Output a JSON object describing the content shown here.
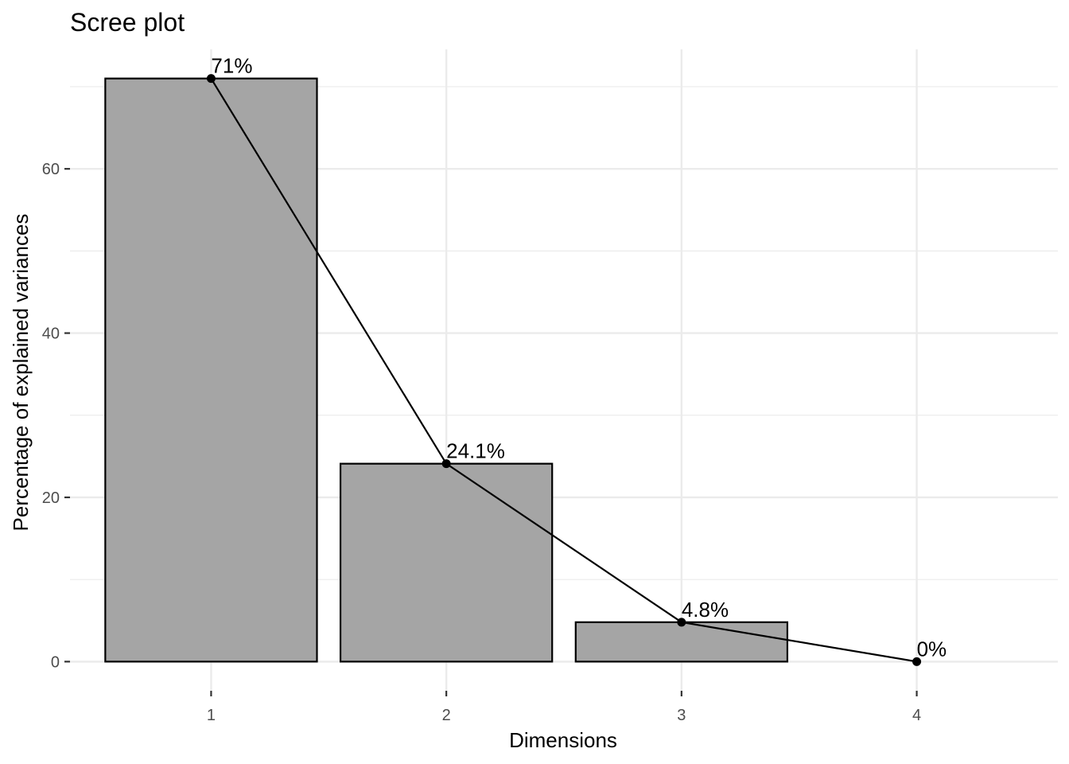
{
  "chart_data": {
    "type": "bar",
    "title": "Scree plot",
    "xlabel": "Dimensions",
    "ylabel": "Percentage of explained variances",
    "categories": [
      "1",
      "2",
      "3",
      "4"
    ],
    "values": [
      71.0,
      24.1,
      4.8,
      0.0
    ],
    "data_labels": [
      "71%",
      "24.1%",
      "4.8%",
      "0%"
    ],
    "line_overlay": true,
    "ylim": [
      -3.55,
      74.55
    ],
    "yticks": [
      0,
      20,
      40,
      60
    ],
    "ytick_labels": [
      "0",
      "20",
      "40",
      "60"
    ],
    "grid": true,
    "legend": "none",
    "colors": {
      "bar_fill": "#a5a5a5",
      "bar_stroke": "#000000",
      "line": "#000000",
      "grid": "#ebebeb",
      "background": "#ffffff"
    }
  }
}
